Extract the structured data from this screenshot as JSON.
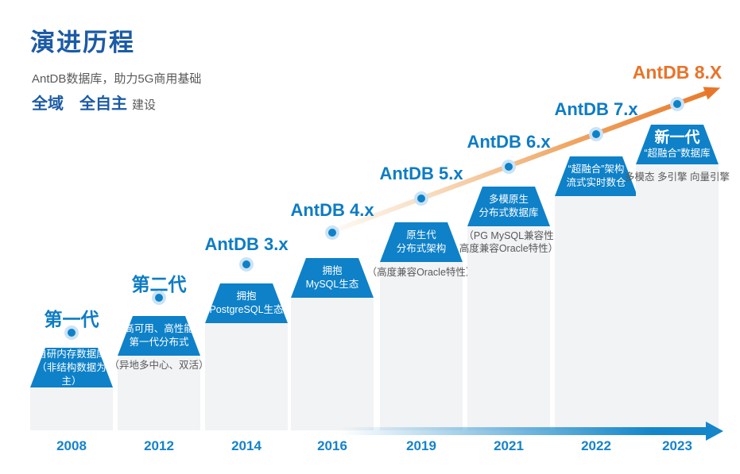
{
  "slide": {
    "title": "演进历程",
    "subtitle": "AntDB数据库，助力5G商用基础",
    "slogan_strong": "全域　全自主",
    "slogan_suffix": "建设"
  },
  "colors": {
    "brand_blue": "#0e81c8",
    "title_blue": "#1c5ba6",
    "label_blue": "#0d7cc4",
    "year_blue": "#1583ca",
    "accent_orange": "#e8742a",
    "note_gray": "#595959",
    "bar_gray": "#f2f3f5"
  },
  "milestones": [
    {
      "year": "2008",
      "label": "第一代",
      "box_line1": "自研内存数据库",
      "box_line2": "（非结构数据为主）"
    },
    {
      "year": "2012",
      "label": "第二代",
      "box_line1": "高可用、高性能",
      "box_line2": "第一代分布式",
      "note1": "（异地多中心、双活）"
    },
    {
      "year": "2014",
      "label": "AntDB 3.x",
      "box_line1": "拥抱",
      "box_line2": "PostgreSQL生态"
    },
    {
      "year": "2016",
      "label": "AntDB 4.x",
      "box_line1": "拥抱",
      "box_line2": "MySQL生态"
    },
    {
      "year": "2019",
      "label": "AntDB 5.x",
      "box_line1": "原生代",
      "box_line2": "分布式架构",
      "note1": "（高度兼容Oracle特性）"
    },
    {
      "year": "2021",
      "label": "AntDB 6.x",
      "box_line1": "多模原生",
      "box_line2": "分布式数据库",
      "note1": "（PG MySQL兼容性",
      "note2": "高度兼容Oracle特性）"
    },
    {
      "year": "2022",
      "label": "AntDB 7.x",
      "box_line1": "“超融合”架构",
      "box_line2": "流式实时数仓"
    },
    {
      "year": "2023",
      "label": "AntDB 8.X",
      "box_line1": "新一代",
      "box_line2": "“超融合”数据库",
      "note1": "多模态 多引擎 向量引擎"
    }
  ]
}
